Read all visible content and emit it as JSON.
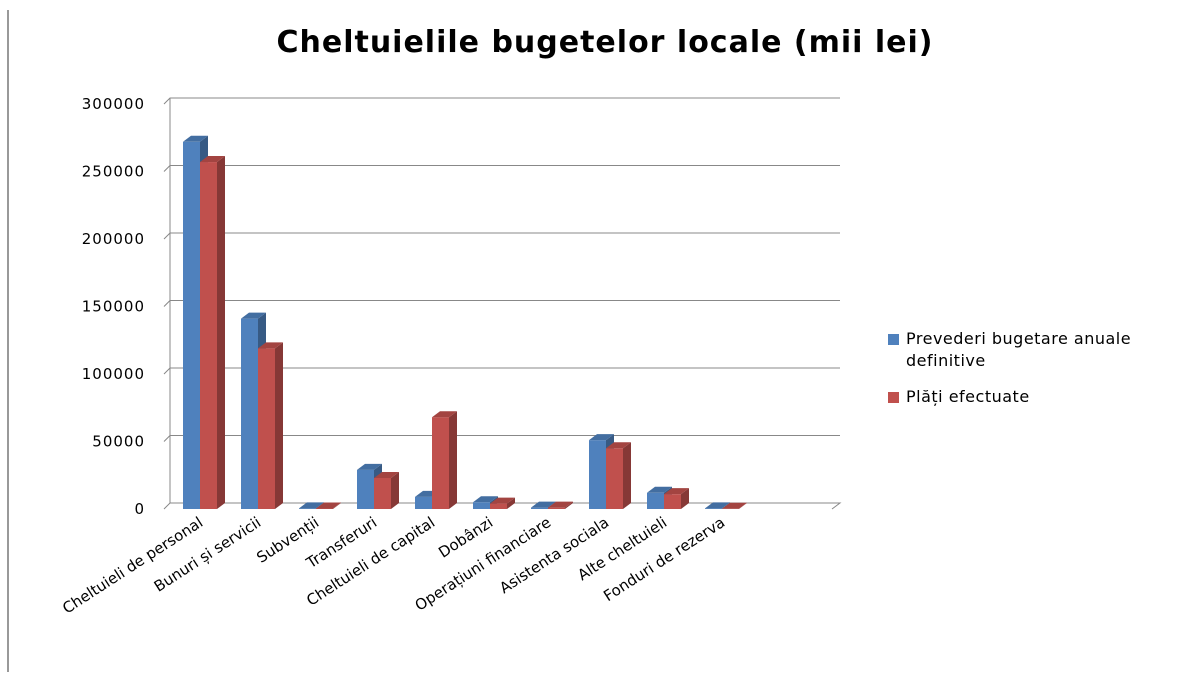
{
  "chart_data": {
    "type": "bar3d",
    "title": "Cheltuielile bugetelor locale (mii lei)",
    "categories": [
      "Cheltuieli de personal",
      "Bunuri și servicii",
      "Subvenții",
      "Transferuri",
      "Cheltuieli de capital",
      "Dobânzi",
      "Operațiuni financiare",
      "Asistenta  sociala",
      "Alte cheltuieli",
      "Fonduri de rezerva",
      null
    ],
    "series": [
      {
        "name": "Prevederi bugetare anuale definitive",
        "color": "#4f81bd",
        "values": [
          272000,
          141000,
          500,
          29000,
          9000,
          5000,
          1000,
          51000,
          12000,
          500,
          null
        ]
      },
      {
        "name": "Plăți efectuate",
        "color": "#c0504d",
        "values": [
          257000,
          119000,
          400,
          23000,
          68000,
          4000,
          1000,
          45000,
          11000,
          200,
          null
        ]
      }
    ],
    "ylim": [
      0,
      300000
    ],
    "yticks": [
      0,
      50000,
      100000,
      150000,
      200000,
      250000,
      300000
    ],
    "grid": true,
    "legend": "right"
  }
}
